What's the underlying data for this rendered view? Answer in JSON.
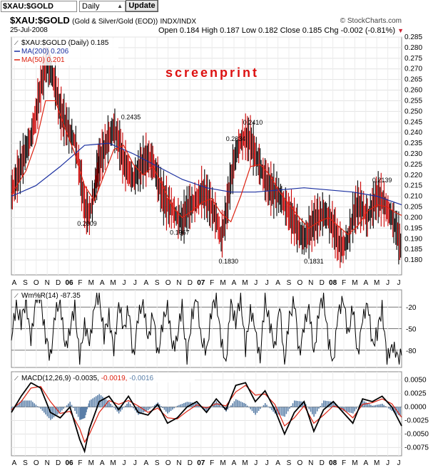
{
  "toolbar": {
    "symbol_value": "$XAU:$GOLD",
    "period_value": "Daily",
    "update_label": "Update"
  },
  "header": {
    "symbol": "$XAU:$GOLD",
    "description": "(Gold & Silver/Gold (EOD))",
    "exchange": "INDX/INDX",
    "source": "© StockCharts.com",
    "date": "25-Jul-2008",
    "ohlc": "Open 0.184  High 0.187  Low 0.182  Close 0.185  Chg -0.002 (-0.81%)",
    "down_arrow": "▼"
  },
  "watermark": "screenprint",
  "chart_data": [
    {
      "type": "line",
      "panel": "price",
      "legend": [
        "$XAU:$GOLD (Daily) 0.185",
        "MA(200) 0.206",
        "MA(50) 0.201"
      ],
      "ylim": [
        0.175,
        0.285
      ],
      "yticks": [
        0.18,
        0.185,
        0.19,
        0.195,
        0.2,
        0.205,
        0.21,
        0.215,
        0.22,
        0.225,
        0.23,
        0.235,
        0.24,
        0.245,
        0.25,
        0.255,
        0.26,
        0.265,
        0.27,
        0.275,
        0.28,
        0.285
      ],
      "x_tick_labels": [
        "A",
        "S",
        "O",
        "N",
        "D",
        "06",
        "F",
        "M",
        "A",
        "M",
        "J",
        "J",
        "A",
        "S",
        "O",
        "N",
        "D",
        "07",
        "F",
        "M",
        "A",
        "M",
        "J",
        "J",
        "A",
        "S",
        "O",
        "N",
        "D",
        "08",
        "F",
        "M",
        "A",
        "M",
        "J",
        "J"
      ],
      "price_x": [
        0,
        2,
        4,
        6,
        8,
        10,
        12,
        14,
        16,
        18,
        20,
        22,
        24,
        26,
        28,
        30,
        32,
        34,
        35,
        36,
        38,
        40,
        42,
        44,
        46,
        48,
        50,
        52,
        54,
        56,
        58,
        60,
        62,
        64,
        66,
        68,
        70,
        72,
        74,
        76,
        78,
        80,
        82,
        84,
        86,
        88,
        90,
        92,
        94,
        96,
        98,
        100,
        102,
        104,
        106,
        108,
        110,
        112,
        114,
        116,
        118,
        120,
        122,
        124,
        126,
        128,
        130,
        132,
        134,
        136,
        138,
        140,
        142,
        144,
        146,
        148,
        150,
        152,
        154,
        156,
        158,
        160
      ],
      "price": [
        0.212,
        0.218,
        0.225,
        0.232,
        0.238,
        0.248,
        0.262,
        0.272,
        0.27,
        0.262,
        0.25,
        0.245,
        0.24,
        0.236,
        0.222,
        0.205,
        0.201,
        0.212,
        0.22,
        0.226,
        0.232,
        0.238,
        0.242,
        0.236,
        0.226,
        0.222,
        0.218,
        0.222,
        0.226,
        0.228,
        0.226,
        0.218,
        0.21,
        0.206,
        0.204,
        0.2,
        0.198,
        0.204,
        0.206,
        0.208,
        0.212,
        0.21,
        0.205,
        0.2,
        0.19,
        0.202,
        0.218,
        0.23,
        0.236,
        0.238,
        0.236,
        0.23,
        0.224,
        0.218,
        0.214,
        0.212,
        0.21,
        0.206,
        0.202,
        0.198,
        0.193,
        0.19,
        0.193,
        0.198,
        0.2,
        0.202,
        0.2,
        0.196,
        0.188,
        0.186,
        0.19,
        0.2,
        0.206,
        0.204,
        0.2,
        0.205,
        0.21,
        0.208,
        0.204,
        0.2,
        0.194,
        0.185
      ],
      "ma200_x": [
        0,
        10,
        20,
        30,
        40,
        50,
        60,
        70,
        80,
        90,
        100,
        110,
        120,
        130,
        140,
        150,
        160
      ],
      "ma200": [
        0.21,
        0.215,
        0.224,
        0.234,
        0.235,
        0.23,
        0.224,
        0.218,
        0.214,
        0.212,
        0.212,
        0.213,
        0.214,
        0.213,
        0.212,
        0.21,
        0.206
      ],
      "ma50_x": [
        0,
        6,
        10,
        14,
        18,
        22,
        26,
        30,
        34,
        38,
        42,
        46,
        50,
        54,
        58,
        62,
        66,
        70,
        74,
        78,
        82,
        86,
        90,
        94,
        98,
        102,
        106,
        110,
        114,
        118,
        122,
        126,
        130,
        134,
        138,
        142,
        146,
        150,
        154,
        158,
        160
      ],
      "ma50": [
        0.211,
        0.222,
        0.235,
        0.255,
        0.255,
        0.242,
        0.23,
        0.215,
        0.208,
        0.22,
        0.232,
        0.234,
        0.225,
        0.22,
        0.224,
        0.215,
        0.205,
        0.2,
        0.203,
        0.207,
        0.209,
        0.202,
        0.198,
        0.21,
        0.224,
        0.225,
        0.22,
        0.212,
        0.206,
        0.2,
        0.195,
        0.198,
        0.2,
        0.196,
        0.192,
        0.196,
        0.203,
        0.206,
        0.205,
        0.202,
        0.201
      ],
      "annotations": [
        {
          "x": 31,
          "y": 0.2009,
          "label": "0.2009",
          "pos": "below"
        },
        {
          "x": 49,
          "y": 0.2435,
          "label": "0.2435",
          "pos": "above"
        },
        {
          "x": 69,
          "y": 0.1967,
          "label": "0.1967",
          "pos": "below"
        },
        {
          "x": 89,
          "y": 0.183,
          "label": "0.1830",
          "pos": "below"
        },
        {
          "x": 92,
          "y": 0.2334,
          "label": "0.2334",
          "pos": "above"
        },
        {
          "x": 99,
          "y": 0.241,
          "label": "0.2410",
          "pos": "above"
        },
        {
          "x": 124,
          "y": 0.1831,
          "label": "0.1831",
          "pos": "below"
        },
        {
          "x": 152,
          "y": 0.2139,
          "label": "0.2139",
          "pos": "above"
        }
      ],
      "colors": {
        "price": "#000000",
        "price_down": "#cc0000",
        "ma200": "#1a2fa0",
        "ma50": "#dd2211"
      }
    },
    {
      "type": "line",
      "panel": "williams",
      "legend": [
        "Wm%R(14) -87.35"
      ],
      "ylim": [
        -100,
        0
      ],
      "yticks": [
        -20,
        -50,
        -80
      ],
      "x": [
        0,
        2,
        4,
        6,
        8,
        10,
        12,
        14,
        16,
        18,
        20,
        22,
        24,
        26,
        28,
        30,
        32,
        34,
        36,
        38,
        40,
        42,
        44,
        46,
        48,
        50,
        52,
        54,
        56,
        58,
        60,
        62,
        64,
        66,
        68,
        70,
        72,
        74,
        76,
        78,
        80,
        82,
        84,
        86,
        88,
        90,
        92,
        94,
        96,
        98,
        100,
        102,
        104,
        106,
        108,
        110,
        112,
        114,
        116,
        118,
        120,
        122,
        124,
        126,
        128,
        130,
        132,
        134,
        136,
        138,
        140,
        142,
        144,
        146,
        148,
        150,
        152,
        154,
        156,
        158,
        160
      ],
      "values": [
        -60,
        -20,
        -40,
        -10,
        -70,
        -5,
        -10,
        -60,
        -90,
        -30,
        -10,
        -80,
        -50,
        -20,
        -95,
        -40,
        -75,
        -15,
        -5,
        -60,
        -30,
        -85,
        -10,
        -55,
        -20,
        -90,
        -35,
        -10,
        -70,
        -25,
        -88,
        -45,
        -15,
        -80,
        -60,
        -20,
        -95,
        -30,
        -10,
        -65,
        -85,
        -25,
        -5,
        -70,
        -95,
        -15,
        -40,
        -5,
        -80,
        -20,
        -55,
        -90,
        -10,
        -45,
        -75,
        -20,
        -95,
        -35,
        -10,
        -85,
        -50,
        -15,
        -90,
        -25,
        -5,
        -70,
        -95,
        -30,
        -5,
        -60,
        -20,
        -85,
        -40,
        -10,
        -75,
        -55,
        -20,
        -95,
        -70,
        -90,
        -87.35
      ],
      "color": "#000000"
    },
    {
      "type": "line",
      "panel": "macd",
      "legend": [
        "MACD(12,26,9) -0.0035,",
        "-0.0019,",
        "-0.0016"
      ],
      "ylim": [
        -0.0085,
        0.006
      ],
      "yticks": [
        0.005,
        0.0025,
        0.0,
        -0.0025,
        -0.005,
        -0.0075
      ],
      "ytick_labels": [
        "0.0050",
        "0.0025",
        "0.0000",
        "-0.0025",
        "-0.0050",
        "-0.0075"
      ],
      "x": [
        0,
        4,
        8,
        12,
        16,
        20,
        24,
        28,
        30,
        32,
        36,
        40,
        44,
        48,
        52,
        56,
        60,
        64,
        68,
        72,
        76,
        80,
        84,
        88,
        92,
        96,
        100,
        104,
        108,
        112,
        116,
        120,
        124,
        128,
        132,
        136,
        140,
        144,
        148,
        152,
        156,
        160
      ],
      "macd": [
        -0.001,
        0.002,
        0.0045,
        0.0035,
        -0.001,
        -0.002,
        0.0,
        -0.006,
        -0.0082,
        -0.004,
        0.001,
        0.002,
        -0.0005,
        0.002,
        -0.001,
        -0.0015,
        0.0005,
        -0.003,
        -0.002,
        0.0,
        0.001,
        -0.001,
        0.0015,
        -0.0005,
        0.004,
        0.0045,
        0.001,
        0.003,
        -0.0005,
        -0.005,
        -0.001,
        0.001,
        -0.0045,
        -0.0005,
        0.001,
        -0.001,
        -0.003,
        0.0015,
        0.001,
        0.002,
        0.0,
        -0.0035
      ],
      "signal": [
        -0.0005,
        0.001,
        0.0035,
        0.0038,
        0.001,
        -0.0012,
        -0.0008,
        -0.004,
        -0.0065,
        -0.005,
        -0.001,
        0.0012,
        0.0005,
        0.0012,
        0.0002,
        -0.001,
        -0.0002,
        -0.002,
        -0.0022,
        -0.0008,
        0.0004,
        -0.0002,
        0.0006,
        0.0002,
        0.0028,
        0.004,
        0.0022,
        0.0024,
        0.0005,
        -0.0035,
        -0.002,
        0.0002,
        -0.003,
        -0.0015,
        0.0002,
        -0.0004,
        -0.002,
        0.0005,
        0.0008,
        0.0015,
        0.0006,
        -0.0019
      ],
      "histogram_label": "-0.0016",
      "colors": {
        "macd": "#000000",
        "signal": "#dd2211",
        "histogram": "#5a7fa8"
      }
    }
  ]
}
